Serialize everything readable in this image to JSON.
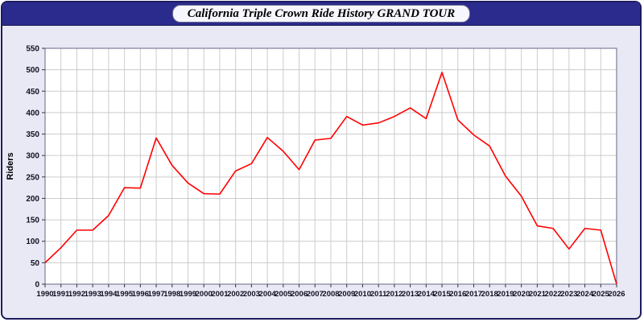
{
  "header": {
    "title": "California Triple Crown Ride History GRAND TOUR"
  },
  "chart_data": {
    "type": "line",
    "title": "California Triple Crown Ride History GRAND TOUR",
    "xlabel": "",
    "ylabel": "Riders",
    "ylim": [
      0,
      550
    ],
    "ytick_step": 50,
    "grid": true,
    "legend": "none",
    "x": [
      1990,
      1991,
      1992,
      1993,
      1994,
      1995,
      1996,
      1997,
      1998,
      1999,
      2000,
      2001,
      2002,
      2003,
      2004,
      2005,
      2006,
      2007,
      2008,
      2009,
      2010,
      2011,
      2012,
      2013,
      2014,
      2015,
      2016,
      2017,
      2018,
      2019,
      2020,
      2021,
      2022,
      2023,
      2024,
      2025,
      2026
    ],
    "series": [
      {
        "name": "Riders",
        "values": [
          50,
          85,
          126,
          126,
          160,
          225,
          224,
          341,
          277,
          236,
          211,
          210,
          264,
          281,
          342,
          310,
          267,
          336,
          340,
          391,
          371,
          376,
          391,
          411,
          386,
          494,
          383,
          348,
          322,
          252,
          205,
          136,
          130,
          82,
          130,
          126,
          0
        ]
      }
    ],
    "colors": {
      "line": "#ff0000",
      "grid": "#cccccc",
      "plot_bg": "#ffffff",
      "plot_border": "#666688",
      "page_bg": "#e9e9f6",
      "header_bg": "#2b2b8e",
      "tick_text": "#111122"
    }
  }
}
